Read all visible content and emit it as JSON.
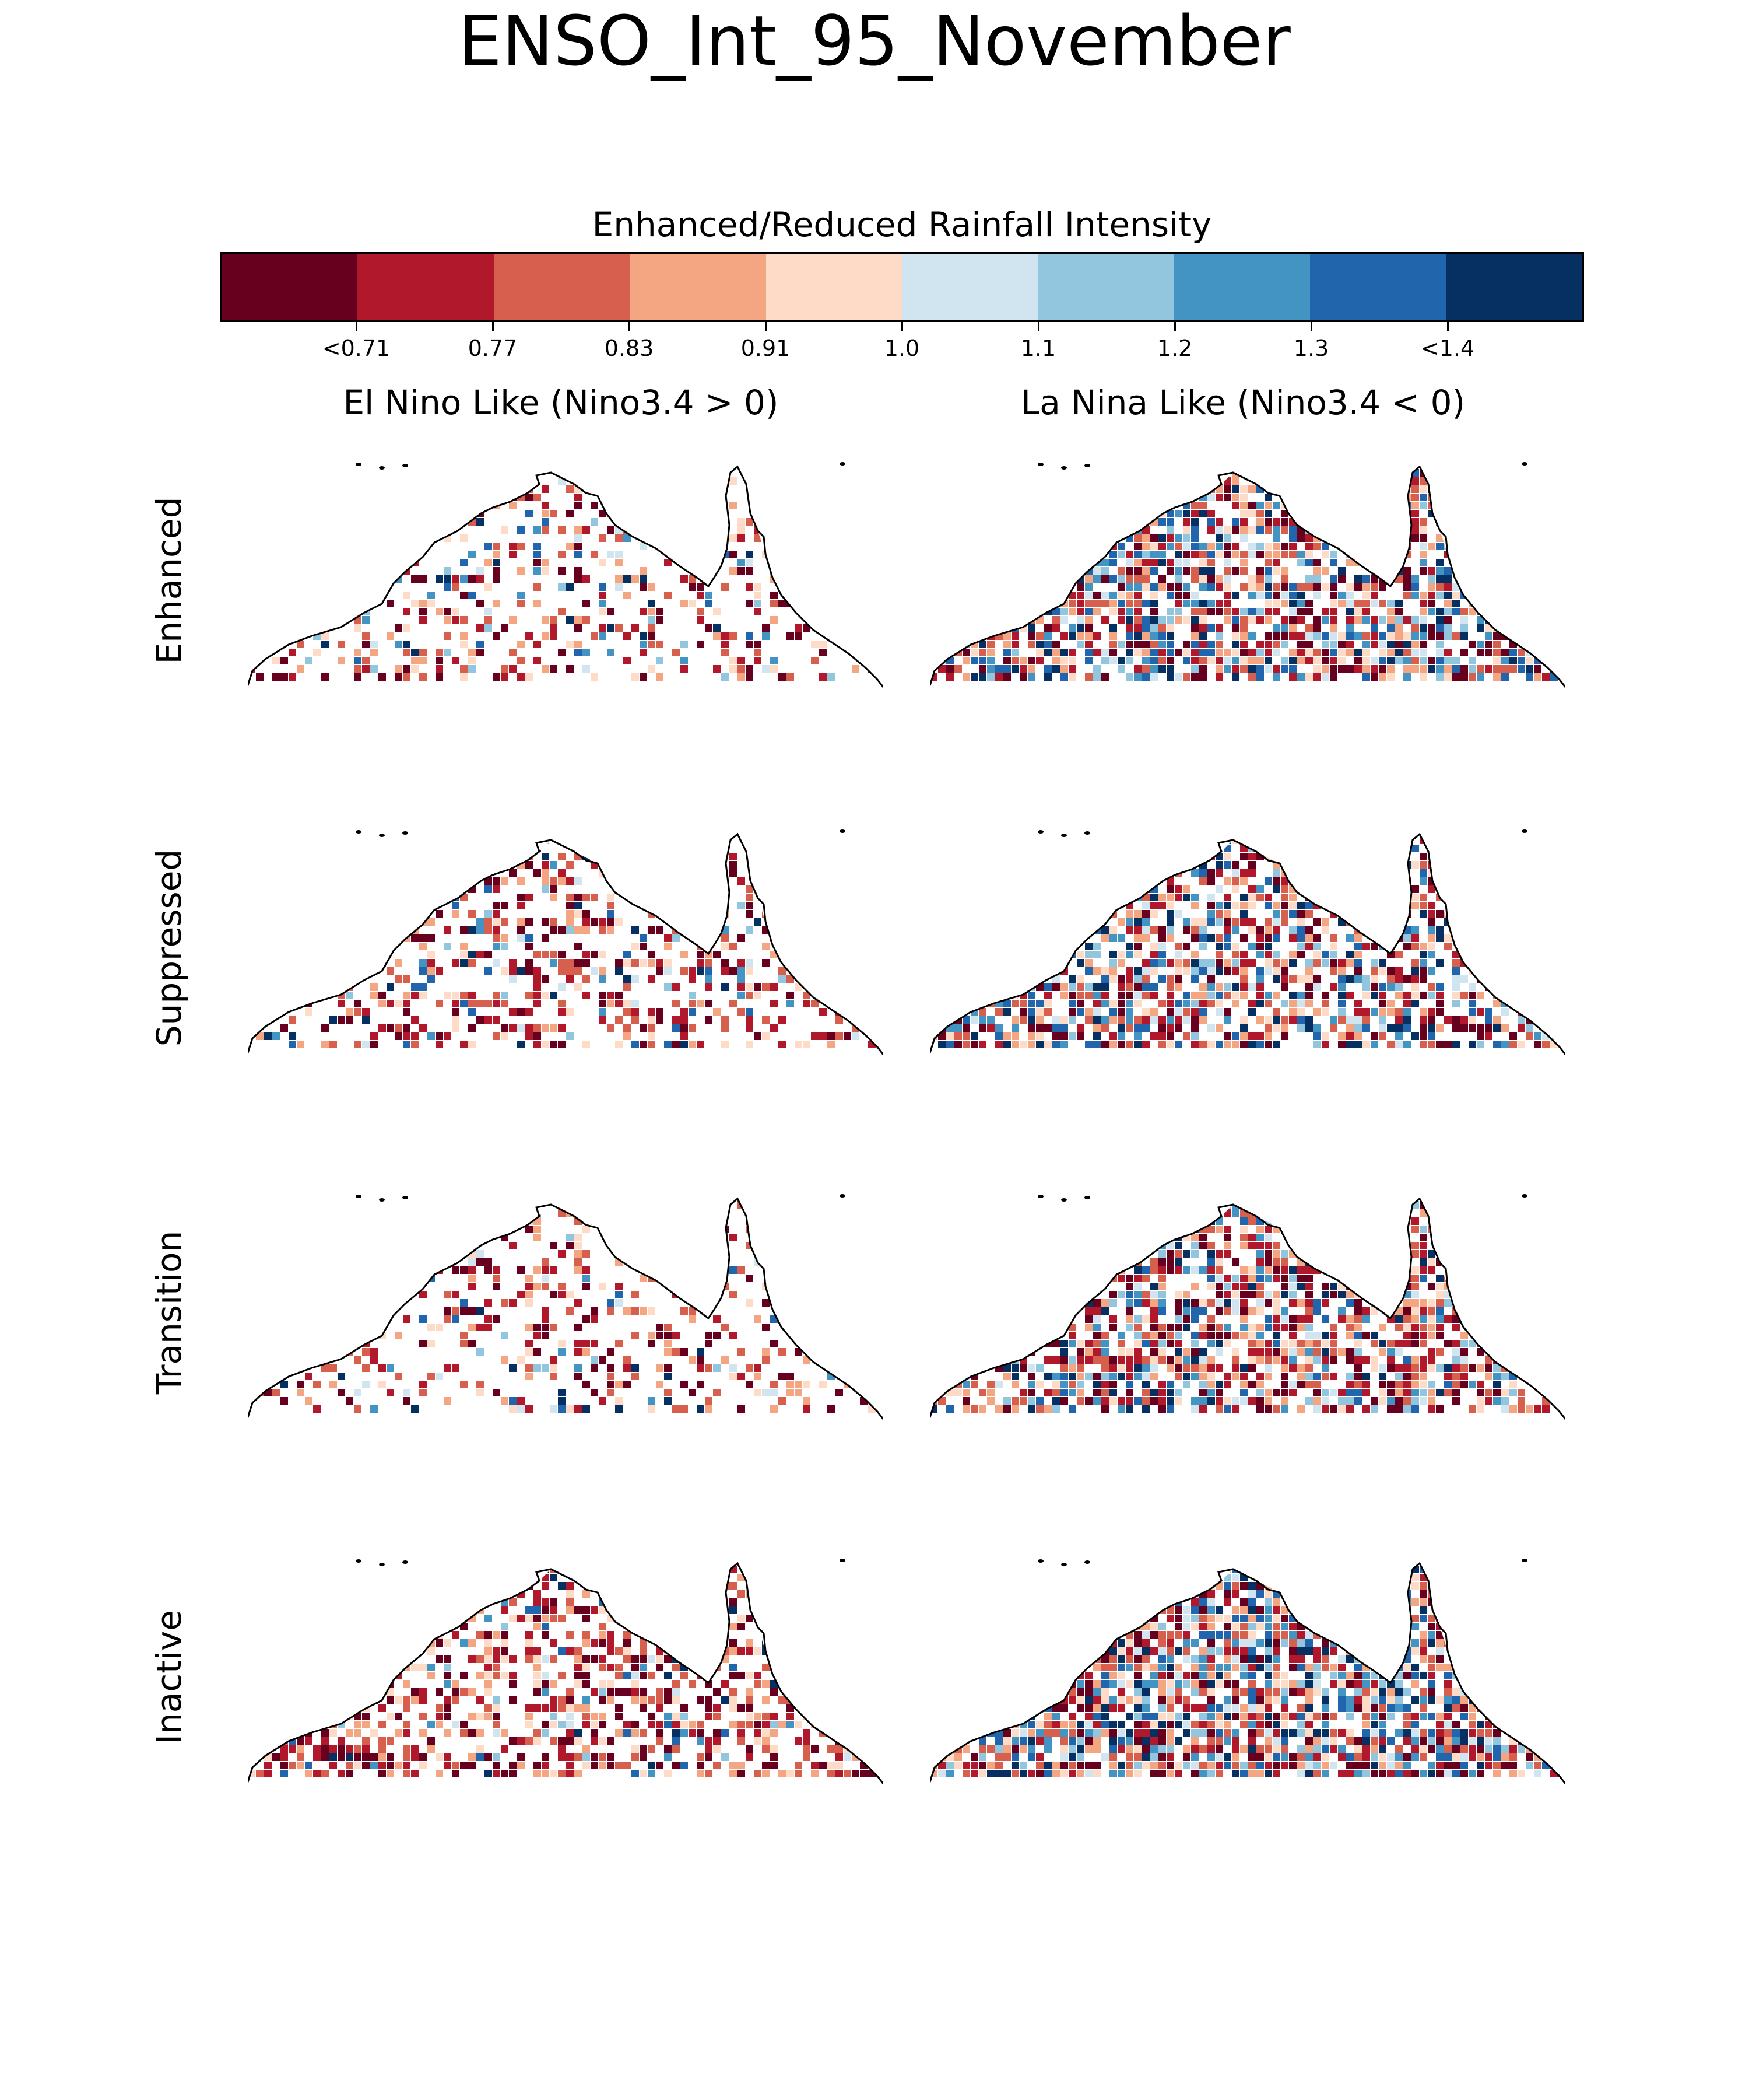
{
  "title": "ENSO_Int_95_November",
  "colorbar": {
    "title": "Enhanced/Reduced Rainfall Intensity",
    "colors": [
      "#67001f",
      "#b2182b",
      "#d6604d",
      "#f4a582",
      "#fddbc7",
      "#d1e5f0",
      "#92c5de",
      "#4393c3",
      "#2166ac",
      "#053061"
    ],
    "tick_labels": [
      "<0.71",
      "0.77",
      "0.83",
      "0.91",
      "1.0",
      "1.1",
      "1.2",
      "1.3",
      "<1.4"
    ]
  },
  "columns": [
    "El Nino Like (Nino3.4 > 0)",
    "La Nina Like (Nino3.4 < 0)"
  ],
  "rows": [
    "Enhanced",
    "Suppressed",
    "Transition",
    "Inactive"
  ],
  "chart_data": {
    "type": "heatmap",
    "title": "ENSO_Int_95_November",
    "colorbar_label": "Enhanced/Reduced Rainfall Intensity",
    "bin_edges": [
      0.71,
      0.77,
      0.83,
      0.91,
      1.0,
      1.1,
      1.2,
      1.3,
      1.4
    ],
    "panels": [
      {
        "row": "Enhanced",
        "column": "El Nino Like (Nino3.4 > 0)",
        "coverage": 0.32,
        "blue_share": 0.25
      },
      {
        "row": "Enhanced",
        "column": "La Nina Like (Nino3.4 < 0)",
        "coverage": 0.78,
        "blue_share": 0.38
      },
      {
        "row": "Suppressed",
        "column": "El Nino Like (Nino3.4 > 0)",
        "coverage": 0.4,
        "blue_share": 0.22
      },
      {
        "row": "Suppressed",
        "column": "La Nina Like (Nino3.4 < 0)",
        "coverage": 0.7,
        "blue_share": 0.4
      },
      {
        "row": "Transition",
        "column": "El Nino Like (Nino3.4 > 0)",
        "coverage": 0.3,
        "blue_share": 0.18
      },
      {
        "row": "Transition",
        "column": "La Nina Like (Nino3.4 < 0)",
        "coverage": 0.72,
        "blue_share": 0.35
      },
      {
        "row": "Inactive",
        "column": "El Nino Like (Nino3.4 > 0)",
        "coverage": 0.55,
        "blue_share": 0.12
      },
      {
        "row": "Inactive",
        "column": "La Nina Like (Nino3.4 < 0)",
        "coverage": 0.85,
        "blue_share": 0.42
      }
    ]
  }
}
